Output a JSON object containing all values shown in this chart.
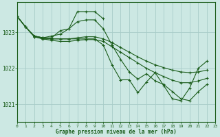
{
  "title": "Graphe pression niveau de la mer (hPa)",
  "background_color": "#cce8e3",
  "line_color": "#1a5c1a",
  "grid_color": "#a8ccc8",
  "xlim": [
    0,
    23
  ],
  "ylim": [
    1020.5,
    1023.85
  ],
  "yticks": [
    1021,
    1022,
    1023
  ],
  "xticks": [
    0,
    1,
    2,
    3,
    4,
    5,
    6,
    7,
    8,
    9,
    10,
    11,
    12,
    13,
    14,
    15,
    16,
    17,
    18,
    19,
    20,
    21,
    22,
    23
  ],
  "series": [
    {
      "x": [
        0,
        1,
        2,
        3,
        4,
        5,
        6,
        7,
        8,
        9,
        10
      ],
      "y": [
        1023.45,
        1023.15,
        1022.9,
        1022.85,
        1022.9,
        1022.95,
        1023.1,
        1023.58,
        1023.58,
        1023.58,
        1023.38
      ]
    },
    {
      "x": [
        0,
        1,
        2,
        3,
        4,
        5,
        6,
        7,
        8,
        9,
        10,
        11,
        12,
        13,
        14,
        15,
        16,
        17,
        18,
        19,
        20,
        21,
        22,
        23
      ],
      "y": [
        1023.45,
        1023.15,
        1022.9,
        1022.85,
        1022.85,
        1023.05,
        1023.1,
        1023.3,
        1023.35,
        1023.35,
        1023.1,
        1022.65,
        1022.25,
        1021.9,
        1021.7,
        1021.85,
        1021.65,
        1021.55,
        1021.35,
        1021.15,
        1021.1,
        1021.35,
        1021.55,
        null
      ]
    },
    {
      "x": [
        0,
        1,
        2,
        3,
        4,
        5,
        6,
        7,
        8,
        9,
        10,
        11,
        12,
        13,
        14,
        15,
        16,
        17,
        18,
        19,
        20,
        21,
        22,
        23
      ],
      "y": [
        1023.45,
        1023.15,
        1022.9,
        1022.85,
        1022.82,
        1022.82,
        1022.82,
        1022.85,
        1022.88,
        1022.88,
        1022.82,
        1022.72,
        1022.58,
        1022.45,
        1022.32,
        1022.2,
        1022.1,
        1022.02,
        1021.95,
        1021.9,
        1021.88,
        1021.9,
        1021.95,
        null
      ]
    },
    {
      "x": [
        0,
        1,
        2,
        3,
        4,
        5,
        6,
        7,
        8,
        9,
        10,
        11,
        12,
        13,
        14,
        15,
        16,
        17,
        18,
        19,
        20,
        21,
        22,
        23
      ],
      "y": [
        1023.45,
        1023.15,
        1022.88,
        1022.82,
        1022.78,
        1022.75,
        1022.75,
        1022.78,
        1022.8,
        1022.8,
        1022.75,
        1022.6,
        1022.45,
        1022.3,
        1022.15,
        1022.0,
        1021.88,
        1021.77,
        1021.67,
        1021.6,
        1021.6,
        1021.65,
        1021.72,
        null
      ]
    },
    {
      "x": [
        0,
        1,
        2,
        3,
        4,
        5,
        6,
        7,
        8,
        9,
        10,
        11,
        12,
        13,
        14,
        15,
        16,
        17,
        18,
        19,
        20,
        21,
        22
      ],
      "y": [
        1023.45,
        1023.15,
        1022.88,
        1022.82,
        1022.82,
        1022.82,
        1022.82,
        1022.82,
        1022.82,
        1022.82,
        1022.65,
        1022.1,
        1021.68,
        1021.68,
        1021.32,
        1021.62,
        1021.88,
        1021.52,
        1021.15,
        1021.1,
        1021.45,
        1022.0,
        1022.2
      ]
    }
  ],
  "figsize": [
    3.2,
    2.0
  ],
  "dpi": 100
}
